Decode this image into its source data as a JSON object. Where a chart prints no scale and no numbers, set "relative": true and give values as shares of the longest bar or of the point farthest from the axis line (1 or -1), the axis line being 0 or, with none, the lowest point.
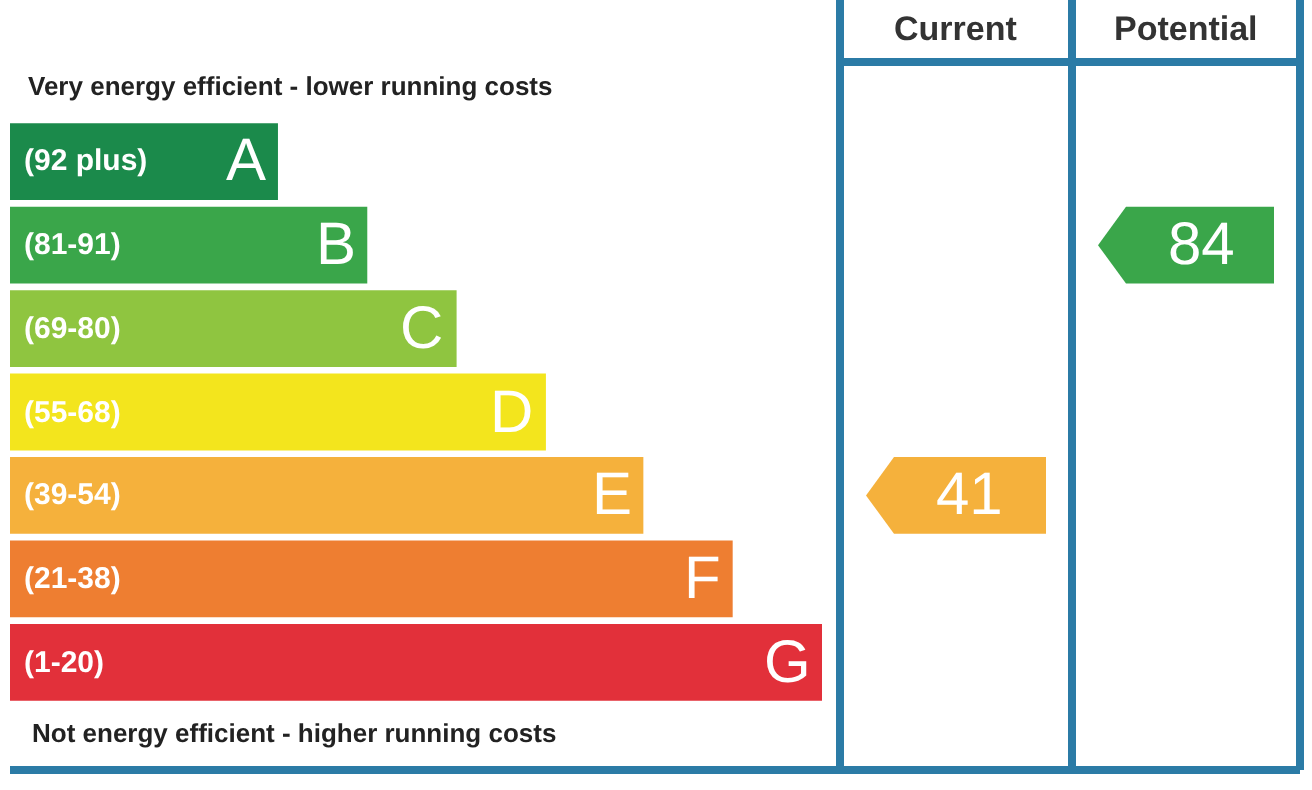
{
  "chart_data": {
    "type": "bar",
    "orientation": "horizontal",
    "relative": true,
    "title": "Very energy efficient - lower running costs",
    "xlabel": "Not energy efficient - higher running costs",
    "categories": [
      "(92 plus) A",
      "(81-91) B",
      "(69-80) C",
      "(55-68) D",
      "(39-54) E",
      "(21-38) F",
      "(1-20) G"
    ],
    "values": [
      0.33,
      0.44,
      0.55,
      0.66,
      0.78,
      0.89,
      1
    ],
    "colors": [
      "#1b8a4b",
      "#3aa64a",
      "#8fc540",
      "#f3e51d",
      "#f5b13c",
      "#ee7e31",
      "#e2303a"
    ],
    "annotations": [
      "Current",
      "Potential",
      "41",
      "84"
    ]
  }
}
